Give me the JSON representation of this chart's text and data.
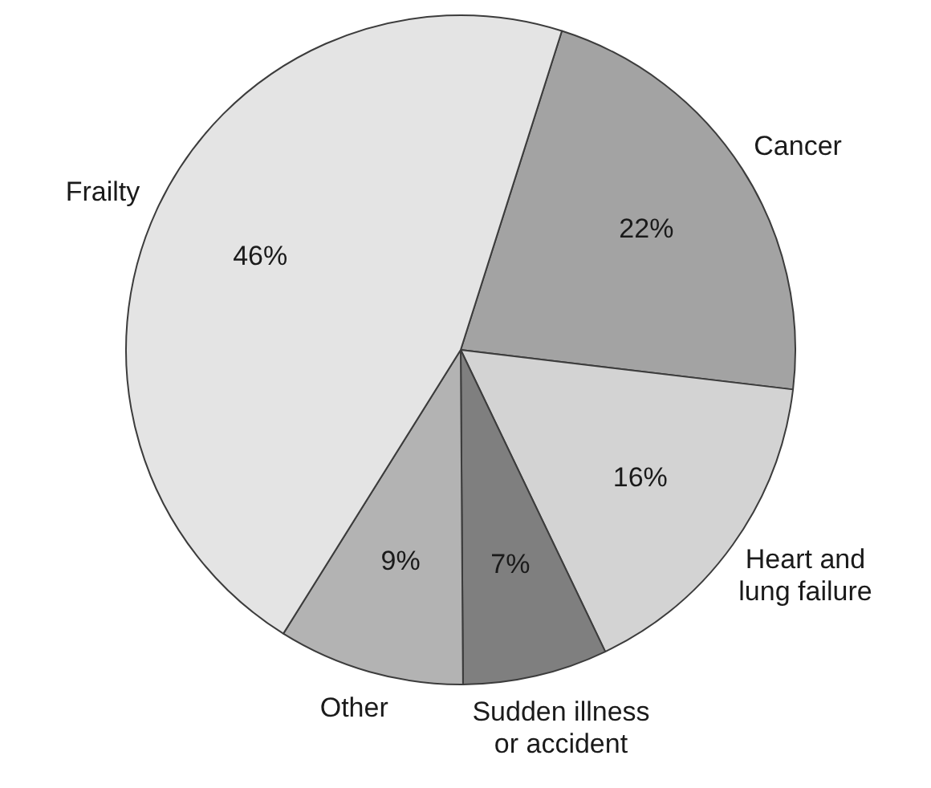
{
  "chart_data": {
    "type": "pie",
    "categories": [
      "Cancer",
      "Heart and lung failure",
      "Sudden illness or accident",
      "Other",
      "Frailty"
    ],
    "values": [
      22,
      16,
      7,
      9,
      46
    ],
    "colors": [
      "#a3a3a3",
      "#d3d3d3",
      "#7f7f7f",
      "#b3b3b3",
      "#e4e4e4"
    ],
    "value_labels": [
      "22%",
      "16%",
      "7%",
      "9%",
      "46%"
    ]
  }
}
